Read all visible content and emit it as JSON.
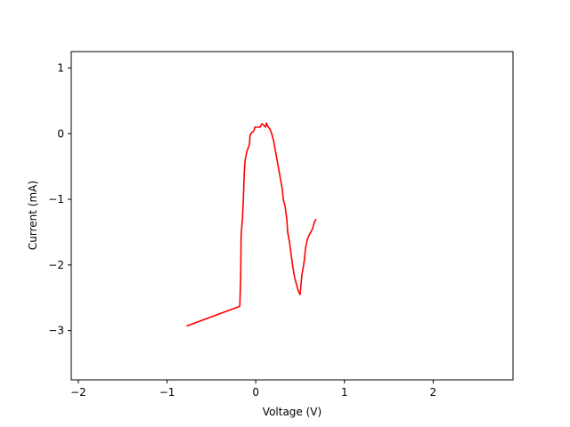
{
  "chart_data": {
    "type": "line",
    "title": "",
    "xlabel": "Voltage (V)",
    "ylabel": "Current (mA)",
    "xlim": [
      -2.08,
      2.9
    ],
    "ylim": [
      -3.75,
      1.25
    ],
    "xticks": [
      {
        "value": -2,
        "label": "−2"
      },
      {
        "value": -1,
        "label": "−1"
      },
      {
        "value": 0,
        "label": "0"
      },
      {
        "value": 1,
        "label": "1"
      },
      {
        "value": 2,
        "label": "2"
      }
    ],
    "yticks": [
      {
        "value": -3,
        "label": "−3"
      },
      {
        "value": -2,
        "label": "−2"
      },
      {
        "value": -1,
        "label": "−1"
      },
      {
        "value": 0,
        "label": "0"
      },
      {
        "value": 1,
        "label": "1"
      }
    ],
    "grid": false,
    "legend": "none",
    "series": [
      {
        "color": "#ff0000",
        "points": [
          [
            -0.78,
            -2.93
          ],
          [
            -0.18,
            -2.63
          ],
          [
            -0.17,
            -2.2
          ],
          [
            -0.165,
            -1.55
          ],
          [
            -0.15,
            -1.3
          ],
          [
            -0.14,
            -1.0
          ],
          [
            -0.13,
            -0.6
          ],
          [
            -0.12,
            -0.4
          ],
          [
            -0.1,
            -0.27
          ],
          [
            -0.08,
            -0.2
          ],
          [
            -0.07,
            -0.15
          ],
          [
            -0.065,
            -0.03
          ],
          [
            -0.05,
            0.01
          ],
          [
            -0.03,
            0.03
          ],
          [
            -0.02,
            0.05
          ],
          [
            -0.01,
            0.1
          ],
          [
            0.02,
            0.1
          ],
          [
            0.05,
            0.1
          ],
          [
            0.07,
            0.15
          ],
          [
            0.09,
            0.13
          ],
          [
            0.11,
            0.1
          ],
          [
            0.12,
            0.16
          ],
          [
            0.14,
            0.1
          ],
          [
            0.16,
            0.07
          ],
          [
            0.18,
            0.0
          ],
          [
            0.2,
            -0.1
          ],
          [
            0.22,
            -0.25
          ],
          [
            0.24,
            -0.4
          ],
          [
            0.26,
            -0.55
          ],
          [
            0.28,
            -0.7
          ],
          [
            0.3,
            -0.85
          ],
          [
            0.31,
            -1.0
          ],
          [
            0.33,
            -1.1
          ],
          [
            0.35,
            -1.3
          ],
          [
            0.36,
            -1.5
          ],
          [
            0.38,
            -1.65
          ],
          [
            0.4,
            -1.85
          ],
          [
            0.42,
            -2.05
          ],
          [
            0.44,
            -2.2
          ],
          [
            0.46,
            -2.3
          ],
          [
            0.48,
            -2.4
          ],
          [
            0.5,
            -2.45
          ],
          [
            0.51,
            -2.3
          ],
          [
            0.52,
            -2.15
          ],
          [
            0.54,
            -2.0
          ],
          [
            0.55,
            -1.9
          ],
          [
            0.56,
            -1.75
          ],
          [
            0.58,
            -1.62
          ],
          [
            0.6,
            -1.55
          ],
          [
            0.62,
            -1.5
          ],
          [
            0.64,
            -1.45
          ],
          [
            0.66,
            -1.35
          ],
          [
            0.68,
            -1.3
          ]
        ]
      }
    ]
  }
}
